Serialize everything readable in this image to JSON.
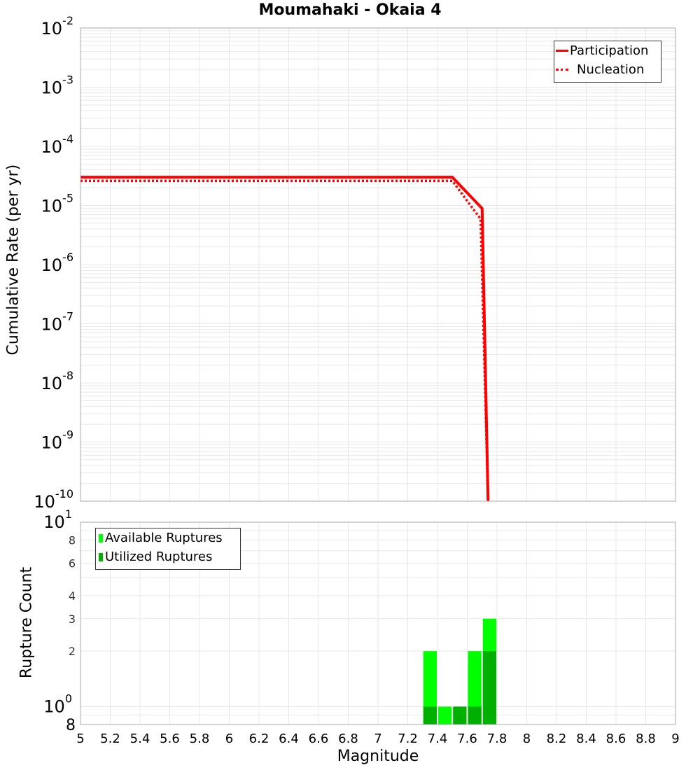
{
  "title": "Moumahaki - Okaia 4",
  "colors": {
    "participation": "#ff0000",
    "nucleation": "#ff0000",
    "available": "#00ff00",
    "utilized": "#00b000",
    "grid": "#e8e8e8",
    "axis": "#aaaaaa"
  },
  "top_panel": {
    "ylabel": "Cumulative Rate (per yr)",
    "legend": [
      {
        "label": "Participation",
        "style": "solid"
      },
      {
        "label": "Nucleation",
        "style": "dotted"
      }
    ],
    "y_ticks": [
      {
        "base": "10",
        "exp": "-2"
      },
      {
        "base": "10",
        "exp": "-3"
      },
      {
        "base": "10",
        "exp": "-4"
      },
      {
        "base": "10",
        "exp": "-5"
      },
      {
        "base": "10",
        "exp": "-6"
      },
      {
        "base": "10",
        "exp": "-7"
      },
      {
        "base": "10",
        "exp": "-8"
      },
      {
        "base": "10",
        "exp": "-9"
      },
      {
        "base": "10",
        "exp": "-10"
      }
    ]
  },
  "bottom_panel": {
    "ylabel": "Rupture Count",
    "legend": [
      {
        "label": "Available Ruptures"
      },
      {
        "label": "Utilized Ruptures"
      }
    ],
    "y_ticks_major": [
      {
        "base": "10",
        "exp": "1",
        "value": 10
      },
      {
        "base": "10",
        "exp": "0",
        "value": 1
      }
    ],
    "y_ticks_minor": [
      {
        "label": "8",
        "value": 8
      },
      {
        "label": "6",
        "value": 6
      },
      {
        "label": "4",
        "value": 4
      },
      {
        "label": "3",
        "value": 3
      },
      {
        "label": "2",
        "value": 2
      },
      {
        "label": "8",
        "value": 0.8
      }
    ]
  },
  "xlabel": "Magnitude",
  "x_ticks": [
    "5",
    "5.2",
    "5.4",
    "5.6",
    "5.8",
    "6",
    "6.2",
    "6.4",
    "6.6",
    "6.8",
    "7",
    "7.2",
    "7.4",
    "7.6",
    "7.8",
    "8",
    "8.2",
    "8.4",
    "8.6",
    "8.8",
    "9"
  ],
  "chart_data": [
    {
      "type": "line",
      "title": "Moumahaki - Okaia 4",
      "xlabel": "Magnitude",
      "ylabel": "Cumulative Rate (per yr)",
      "yscale": "log",
      "xlim": [
        5,
        9
      ],
      "ylim": [
        1e-10,
        0.01
      ],
      "grid": true,
      "legend_position": "upper right",
      "series": [
        {
          "name": "Participation",
          "style": "solid",
          "color": "#ff0000",
          "x": [
            5.0,
            7.5,
            7.7,
            7.74
          ],
          "y": [
            3e-05,
            3e-05,
            8.9e-06,
            1e-10
          ]
        },
        {
          "name": "Nucleation",
          "style": "dotted",
          "color": "#ff0000",
          "x": [
            5.0,
            7.5,
            7.69,
            7.74
          ],
          "y": [
            2.6e-05,
            2.6e-05,
            5.9e-06,
            1e-10
          ]
        }
      ]
    },
    {
      "type": "bar",
      "xlabel": "Magnitude",
      "ylabel": "Rupture Count",
      "yscale": "log",
      "xlim": [
        5,
        9
      ],
      "ylim": [
        0.8,
        10
      ],
      "grid": true,
      "legend_position": "upper left",
      "bar_width": 0.1,
      "categories": [
        7.35,
        7.45,
        7.55,
        7.65,
        7.75
      ],
      "series": [
        {
          "name": "Available Ruptures",
          "color": "#00ff00",
          "values": [
            2,
            1,
            1,
            2,
            3
          ]
        },
        {
          "name": "Utilized Ruptures",
          "color": "#00b000",
          "values": [
            1,
            0,
            1,
            1,
            2
          ]
        }
      ]
    }
  ]
}
